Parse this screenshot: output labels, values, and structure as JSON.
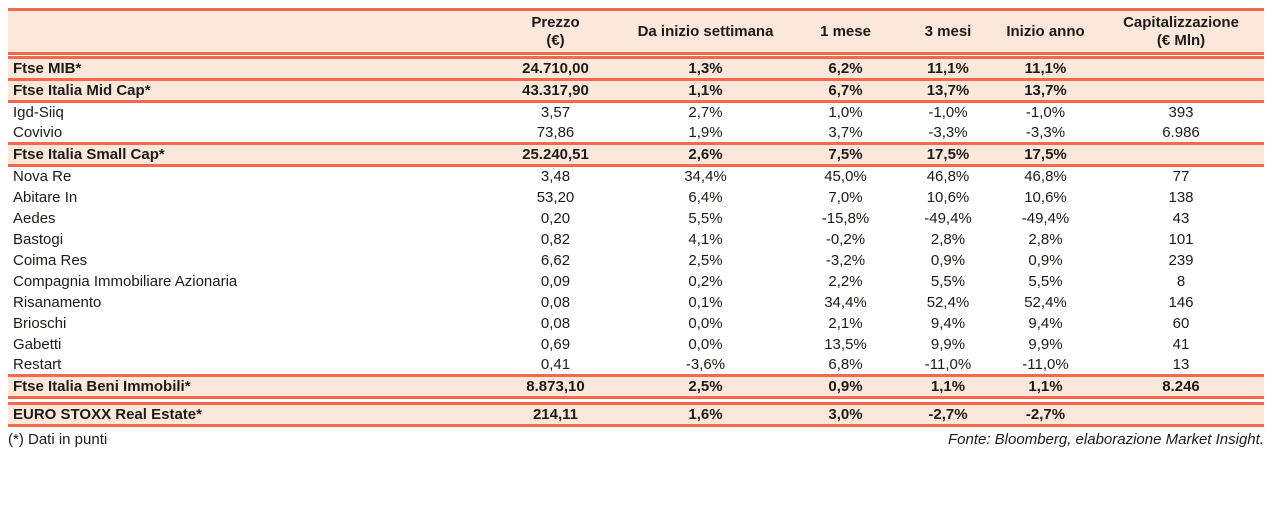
{
  "colors": {
    "accent_line": "#f2694e",
    "highlight_row_bg": "#fce8da",
    "text": "#1d1b19"
  },
  "header": {
    "prezzo_line1": "Prezzo",
    "prezzo_line2": "(€)",
    "da_inizio_settimana": "Da inizio settimana",
    "un_mese": "1 mese",
    "tre_mesi": "3 mesi",
    "inizio_anno": "Inizio anno",
    "capitalizzazione_line1": "Capitalizzazione",
    "capitalizzazione_line2": "(€ Mln)"
  },
  "rows": [
    {
      "name": "Ftse MIB*",
      "prezzo": "24.710,00",
      "settimana": "1,3%",
      "mese1": "6,2%",
      "mesi3": "11,1%",
      "anno": "11,1%",
      "cap": "",
      "emphasis": true
    },
    {
      "name": "Ftse Italia Mid Cap*",
      "prezzo": "43.317,90",
      "settimana": "1,1%",
      "mese1": "6,7%",
      "mesi3": "13,7%",
      "anno": "13,7%",
      "cap": "",
      "emphasis": true
    },
    {
      "name": "Igd-Siiq",
      "prezzo": "3,57",
      "settimana": "2,7%",
      "mese1": "1,0%",
      "mesi3": "-1,0%",
      "anno": "-1,0%",
      "cap": "393",
      "emphasis": false
    },
    {
      "name": "Covivio",
      "prezzo": "73,86",
      "settimana": "1,9%",
      "mese1": "3,7%",
      "mesi3": "-3,3%",
      "anno": "-3,3%",
      "cap": "6.986",
      "emphasis": false
    },
    {
      "name": "Ftse Italia Small Cap*",
      "prezzo": "25.240,51",
      "settimana": "2,6%",
      "mese1": "7,5%",
      "mesi3": "17,5%",
      "anno": "17,5%",
      "cap": "",
      "emphasis": true
    },
    {
      "name": "Nova Re",
      "prezzo": "3,48",
      "settimana": "34,4%",
      "mese1": "45,0%",
      "mesi3": "46,8%",
      "anno": "46,8%",
      "cap": "77",
      "emphasis": false
    },
    {
      "name": "Abitare In",
      "prezzo": "53,20",
      "settimana": "6,4%",
      "mese1": "7,0%",
      "mesi3": "10,6%",
      "anno": "10,6%",
      "cap": "138",
      "emphasis": false
    },
    {
      "name": "Aedes",
      "prezzo": "0,20",
      "settimana": "5,5%",
      "mese1": "-15,8%",
      "mesi3": "-49,4%",
      "anno": "-49,4%",
      "cap": "43",
      "emphasis": false
    },
    {
      "name": "Bastogi",
      "prezzo": "0,82",
      "settimana": "4,1%",
      "mese1": "-0,2%",
      "mesi3": "2,8%",
      "anno": "2,8%",
      "cap": "101",
      "emphasis": false
    },
    {
      "name": "Coima Res",
      "prezzo": "6,62",
      "settimana": "2,5%",
      "mese1": "-3,2%",
      "mesi3": "0,9%",
      "anno": "0,9%",
      "cap": "239",
      "emphasis": false
    },
    {
      "name": "Compagnia Immobiliare Azionaria",
      "prezzo": "0,09",
      "settimana": "0,2%",
      "mese1": "2,2%",
      "mesi3": "5,5%",
      "anno": "5,5%",
      "cap": "8",
      "emphasis": false
    },
    {
      "name": "Risanamento",
      "prezzo": "0,08",
      "settimana": "0,1%",
      "mese1": "34,4%",
      "mesi3": "52,4%",
      "anno": "52,4%",
      "cap": "146",
      "emphasis": false
    },
    {
      "name": "Brioschi",
      "prezzo": "0,08",
      "settimana": "0,0%",
      "mese1": "2,1%",
      "mesi3": "9,4%",
      "anno": "9,4%",
      "cap": "60",
      "emphasis": false
    },
    {
      "name": "Gabetti",
      "prezzo": "0,69",
      "settimana": "0,0%",
      "mese1": "13,5%",
      "mesi3": "9,9%",
      "anno": "9,9%",
      "cap": "41",
      "emphasis": false
    },
    {
      "name": "Restart",
      "prezzo": "0,41",
      "settimana": "-3,6%",
      "mese1": "6,8%",
      "mesi3": "-11,0%",
      "anno": "-11,0%",
      "cap": "13",
      "emphasis": false
    },
    {
      "name": "Ftse Italia Beni Immobili*",
      "prezzo": "8.873,10",
      "settimana": "2,5%",
      "mese1": "0,9%",
      "mesi3": "1,1%",
      "anno": "1,1%",
      "cap": "8.246",
      "emphasis": true
    },
    {
      "name": "EURO STOXX Real Estate*",
      "prezzo": "214,11",
      "settimana": "1,6%",
      "mese1": "3,0%",
      "mesi3": "-2,7%",
      "anno": "-2,7%",
      "cap": "",
      "emphasis": true,
      "spacer_before": true
    }
  ],
  "footer": {
    "note": "(*) Dati in punti",
    "fonte": "Fonte: Bloomberg, elaborazione Market Insight."
  }
}
